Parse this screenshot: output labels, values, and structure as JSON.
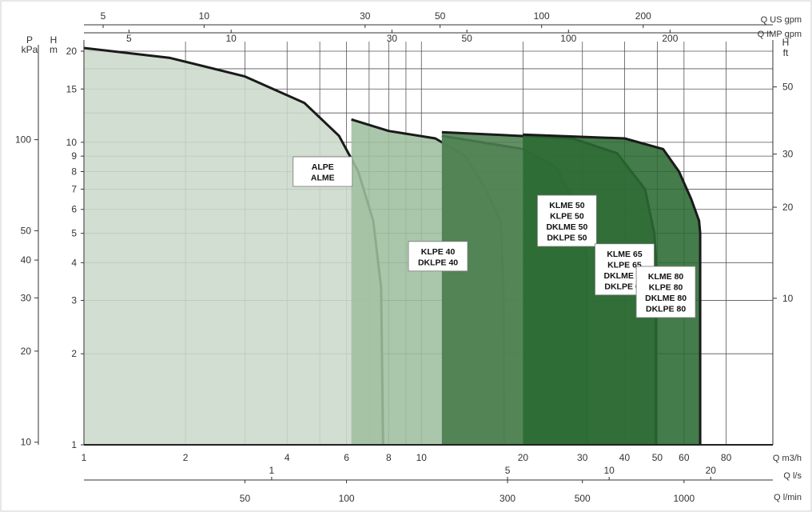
{
  "chart_data": {
    "type": "area",
    "title": "",
    "x_axis": {
      "scale": "log",
      "range": [
        1,
        110
      ],
      "label": "Q m3/h",
      "ticks": [
        "1",
        "2",
        "4",
        "6",
        "8",
        "10",
        "20",
        "30",
        "40",
        "50",
        "60",
        "80"
      ]
    },
    "y_axis_left": {
      "scale": "log",
      "range": [
        1,
        21
      ],
      "label_top": "H",
      "label_unit": "m",
      "ticks": [
        "1",
        "2",
        "3",
        "4",
        "5",
        "6",
        "7",
        "8",
        "9",
        "10",
        "15",
        "20"
      ]
    },
    "y_axis_pressure": {
      "label_top": "P",
      "label_unit": "kPa",
      "ticks": [
        {
          "label": "10",
          "m": 1.02
        },
        {
          "label": "20",
          "m": 2.04
        },
        {
          "label": "30",
          "m": 3.06
        },
        {
          "label": "40",
          "m": 4.08
        },
        {
          "label": "50",
          "m": 5.1
        },
        {
          "label": "100",
          "m": 10.2
        }
      ]
    },
    "y_axis_right": {
      "label_top": "H",
      "label_unit": "ft",
      "ticks": [
        {
          "label": "10",
          "m": 3.05
        },
        {
          "label": "20",
          "m": 6.1
        },
        {
          "label": "30",
          "m": 9.14
        },
        {
          "label": "50",
          "m": 15.24
        }
      ]
    },
    "top_axis_us": {
      "label": "Q US gpm",
      "ticks": [
        {
          "label": "5",
          "m3h": 1.14
        },
        {
          "label": "10",
          "m3h": 2.27
        },
        {
          "label": "30",
          "m3h": 6.81
        },
        {
          "label": "50",
          "m3h": 11.36
        },
        {
          "label": "100",
          "m3h": 22.71
        },
        {
          "label": "200",
          "m3h": 45.42
        }
      ]
    },
    "top_axis_imp": {
      "label": "Q IMP gpm",
      "ticks": [
        {
          "label": "5",
          "m3h": 1.36
        },
        {
          "label": "10",
          "m3h": 2.73
        },
        {
          "label": "30",
          "m3h": 8.18
        },
        {
          "label": "50",
          "m3h": 13.64
        },
        {
          "label": "100",
          "m3h": 27.28
        },
        {
          "label": "200",
          "m3h": 54.55
        }
      ]
    },
    "bottom_axis_ls": {
      "label": "Q l/s",
      "ticks": [
        {
          "label": "1",
          "m3h": 3.6
        },
        {
          "label": "5",
          "m3h": 18
        },
        {
          "label": "10",
          "m3h": 36
        },
        {
          "label": "20",
          "m3h": 72
        }
      ]
    },
    "bottom_axis_lmin": {
      "label": "Q l/min",
      "ticks": [
        {
          "label": "50",
          "m3h": 3
        },
        {
          "label": "100",
          "m3h": 6
        },
        {
          "label": "300",
          "m3h": 18
        },
        {
          "label": "500",
          "m3h": 30
        },
        {
          "label": "1000",
          "m3h": 60
        }
      ]
    },
    "series": [
      {
        "name": "ALPE ALME",
        "labels": [
          "ALPE",
          "ALME"
        ],
        "color": "#cbdacb",
        "curve": [
          [
            1,
            20.5
          ],
          [
            1.8,
            19
          ],
          [
            3,
            16.5
          ],
          [
            4.5,
            13.5
          ],
          [
            5.7,
            10.5
          ],
          [
            6.5,
            8
          ],
          [
            7.2,
            5.5
          ],
          [
            7.6,
            3.3
          ],
          [
            7.7,
            1
          ]
        ],
        "label_at": [
          5.1,
          8
        ]
      },
      {
        "name": "KLPE 40 DKLPE 40",
        "labels": [
          "KLPE 40",
          "DKLPE 40"
        ],
        "color": "#9fbf9f",
        "curve": [
          [
            6.2,
            11.9
          ],
          [
            8,
            10.9
          ],
          [
            11,
            10.3
          ],
          [
            13.5,
            9
          ],
          [
            15.5,
            7
          ],
          [
            17.2,
            5.5
          ],
          [
            17.5,
            3.2
          ],
          [
            17.6,
            1
          ]
        ],
        "label_at": [
          11.2,
          4.2
        ]
      },
      {
        "name": "KLME 50 KLPE 50 DKLME 50 DKLPE 50",
        "labels": [
          "KLME 50",
          "KLPE 50",
          "DKLME 50",
          "DKLPE 50"
        ],
        "color": "#769f76",
        "curve": [
          [
            11.5,
            10.5
          ],
          [
            20,
            9.5
          ],
          [
            25,
            8.3
          ],
          [
            28,
            6.5
          ],
          [
            30.5,
            5
          ],
          [
            31,
            4
          ],
          [
            31,
            1
          ]
        ],
        "label_at": [
          27,
          5.5
        ]
      },
      {
        "name": "KLME 65 KLPE 65 DKLME 65 DKLPE 65",
        "labels": [
          "KLME 65",
          "KLPE 65",
          "DKLME 65",
          "DKLPE 65"
        ],
        "color": "#4c8050",
        "curve": [
          [
            11.5,
            10.8
          ],
          [
            28,
            10.3
          ],
          [
            38,
            9.2
          ],
          [
            46,
            7
          ],
          [
            49,
            5
          ],
          [
            49.5,
            4.2
          ],
          [
            49.5,
            1
          ]
        ],
        "label_at": [
          40,
          3.8
        ]
      },
      {
        "name": "KLME 80 KLPE 80 DKLME 80 DKLPE 80",
        "labels": [
          "KLME 80",
          "KLPE 80",
          "DKLME 80",
          "DKLPE 80"
        ],
        "color": "#2a6a32",
        "curve": [
          [
            20,
            10.6
          ],
          [
            40,
            10.3
          ],
          [
            52,
            9.5
          ],
          [
            58,
            8
          ],
          [
            63,
            6.5
          ],
          [
            66.5,
            5.5
          ],
          [
            67,
            5
          ],
          [
            67,
            1
          ]
        ],
        "label_at": [
          53,
          3.2
        ]
      }
    ]
  }
}
